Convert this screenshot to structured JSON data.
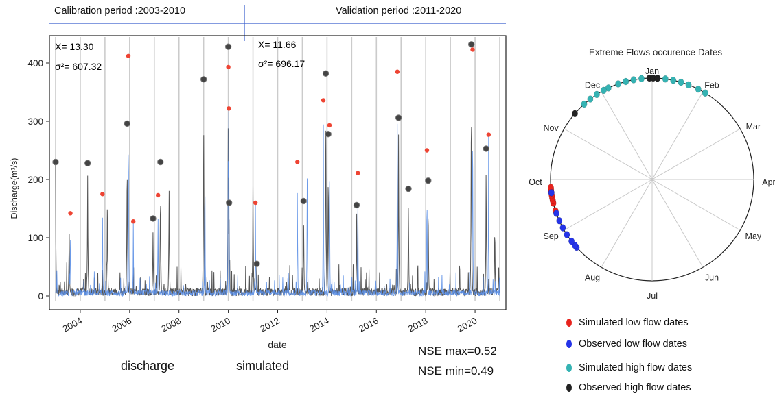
{
  "periods": {
    "calibration": "Calibration period :2003-2010",
    "validation": "Validation period :2011-2020"
  },
  "stats": {
    "cal_x": "X= 13.30",
    "cal_sigma": "σ²= 607.32",
    "val_x": "X= 11.66",
    "val_sigma": "σ²= 696.17"
  },
  "bottom_legend": {
    "discharge": "discharge",
    "simulated": "simulated"
  },
  "nse": {
    "max": "NSE max=0.52",
    "min": "NSE min=0.49"
  },
  "circular_legend": [
    {
      "label": "Simulated low flow dates",
      "color": "#e8231d"
    },
    {
      "label": "Observed low flow dates",
      "color": "#2534e8"
    },
    {
      "label": "Simulated high flow dates",
      "color": "#35b3b3"
    },
    {
      "label": "Observed high flow dates",
      "color": "#222222"
    }
  ],
  "chart_data": [
    {
      "type": "line",
      "xlabel": "date",
      "ylabel": "Discharge(m³/s)",
      "ylim": [
        0,
        440
      ],
      "yticks": [
        0,
        100,
        200,
        300,
        400
      ],
      "xticks": [
        "2004",
        "2006",
        "2008",
        "2010",
        "2012",
        "2014",
        "2016",
        "2018",
        "2020"
      ],
      "colors": {
        "discharge": "#555555",
        "simulated": "#5b8fe6",
        "observed_peak": "#444444",
        "simulated_peak": "#ee4433"
      },
      "series": [
        {
          "name": "discharge",
          "color": "#555555",
          "peaks": [
            {
              "x": 2003.0,
              "y": 230
            },
            {
              "x": 2003.55,
              "y": 130
            },
            {
              "x": 2004.3,
              "y": 228
            },
            {
              "x": 2005.1,
              "y": 200
            },
            {
              "x": 2005.9,
              "y": 296
            },
            {
              "x": 2006.95,
              "y": 133
            },
            {
              "x": 2007.25,
              "y": 230
            },
            {
              "x": 2007.6,
              "y": 220
            },
            {
              "x": 2009.0,
              "y": 372
            },
            {
              "x": 2010.0,
              "y": 428
            },
            {
              "x": 2010.03,
              "y": 160
            },
            {
              "x": 2011.0,
              "y": 230
            },
            {
              "x": 2011.15,
              "y": 55
            },
            {
              "x": 2013.05,
              "y": 163
            },
            {
              "x": 2013.95,
              "y": 382
            },
            {
              "x": 2014.05,
              "y": 278
            },
            {
              "x": 2015.2,
              "y": 156
            },
            {
              "x": 2016.9,
              "y": 306
            },
            {
              "x": 2017.3,
              "y": 184
            },
            {
              "x": 2018.1,
              "y": 198
            },
            {
              "x": 2019.85,
              "y": 432
            },
            {
              "x": 2020.45,
              "y": 253
            },
            {
              "x": 2020.8,
              "y": 150
            }
          ]
        },
        {
          "name": "simulated",
          "color": "#5b8fe6",
          "peaks": [
            {
              "x": 2003.05,
              "y": 50
            },
            {
              "x": 2003.6,
              "y": 142
            },
            {
              "x": 2004.9,
              "y": 175
            },
            {
              "x": 2005.95,
              "y": 412
            },
            {
              "x": 2006.15,
              "y": 128
            },
            {
              "x": 2007.15,
              "y": 173
            },
            {
              "x": 2009.05,
              "y": 290
            },
            {
              "x": 2010.0,
              "y": 393
            },
            {
              "x": 2010.02,
              "y": 322
            },
            {
              "x": 2011.1,
              "y": 160
            },
            {
              "x": 2012.8,
              "y": 230
            },
            {
              "x": 2013.2,
              "y": 300
            },
            {
              "x": 2013.85,
              "y": 336
            },
            {
              "x": 2014.1,
              "y": 293
            },
            {
              "x": 2015.25,
              "y": 211
            },
            {
              "x": 2016.85,
              "y": 385
            },
            {
              "x": 2018.05,
              "y": 250
            },
            {
              "x": 2019.9,
              "y": 423
            },
            {
              "x": 2020.55,
              "y": 277
            }
          ]
        }
      ],
      "observed_peak_markers": [
        {
          "x": 2003.0,
          "y": 230
        },
        {
          "x": 2004.3,
          "y": 228
        },
        {
          "x": 2005.9,
          "y": 296
        },
        {
          "x": 2006.95,
          "y": 133
        },
        {
          "x": 2007.25,
          "y": 230
        },
        {
          "x": 2009.0,
          "y": 372
        },
        {
          "x": 2010.0,
          "y": 428
        },
        {
          "x": 2010.03,
          "y": 160
        },
        {
          "x": 2011.15,
          "y": 55
        },
        {
          "x": 2013.05,
          "y": 163
        },
        {
          "x": 2013.95,
          "y": 382
        },
        {
          "x": 2014.05,
          "y": 278
        },
        {
          "x": 2015.2,
          "y": 156
        },
        {
          "x": 2016.9,
          "y": 306
        },
        {
          "x": 2017.3,
          "y": 184
        },
        {
          "x": 2018.1,
          "y": 198
        },
        {
          "x": 2019.85,
          "y": 432
        },
        {
          "x": 2020.45,
          "y": 253
        }
      ],
      "simulated_peak_markers": [
        {
          "x": 2003.6,
          "y": 142
        },
        {
          "x": 2004.9,
          "y": 175
        },
        {
          "x": 2005.95,
          "y": 412
        },
        {
          "x": 2006.15,
          "y": 128
        },
        {
          "x": 2007.15,
          "y": 173
        },
        {
          "x": 2010.0,
          "y": 393
        },
        {
          "x": 2010.02,
          "y": 322
        },
        {
          "x": 2011.1,
          "y": 160
        },
        {
          "x": 2012.8,
          "y": 230
        },
        {
          "x": 2013.85,
          "y": 336
        },
        {
          "x": 2014.1,
          "y": 293
        },
        {
          "x": 2015.25,
          "y": 211
        },
        {
          "x": 2016.85,
          "y": 385
        },
        {
          "x": 2018.05,
          "y": 250
        },
        {
          "x": 2019.9,
          "y": 423
        },
        {
          "x": 2020.55,
          "y": 277
        }
      ]
    },
    {
      "type": "scatter",
      "title": "Extreme Flows occurence Dates",
      "months": [
        "Jan",
        "Feb",
        "Mar",
        "Apr",
        "May",
        "Jun",
        "Jul",
        "Aug",
        "Sep",
        "Oct",
        "Nov",
        "Dec"
      ],
      "points_month_position": {
        "simulated_low": [
          8.55,
          8.6,
          8.65,
          8.7,
          8.75,
          8.8,
          8.85,
          8.4
        ],
        "observed_low": [
          7.6,
          7.65,
          7.75,
          7.9,
          8.05,
          8.2,
          8.35,
          8.75
        ],
        "simulated_high": [
          0.1,
          0.25,
          0.4,
          0.55,
          0.7,
          0.9,
          1.05,
          11.8,
          11.65,
          11.5,
          11.35,
          11.15,
          11.05,
          10.9,
          10.75,
          10.6
        ],
        "observed_high": [
          11.95,
          0.02,
          0.1,
          10.35
        ]
      }
    }
  ]
}
